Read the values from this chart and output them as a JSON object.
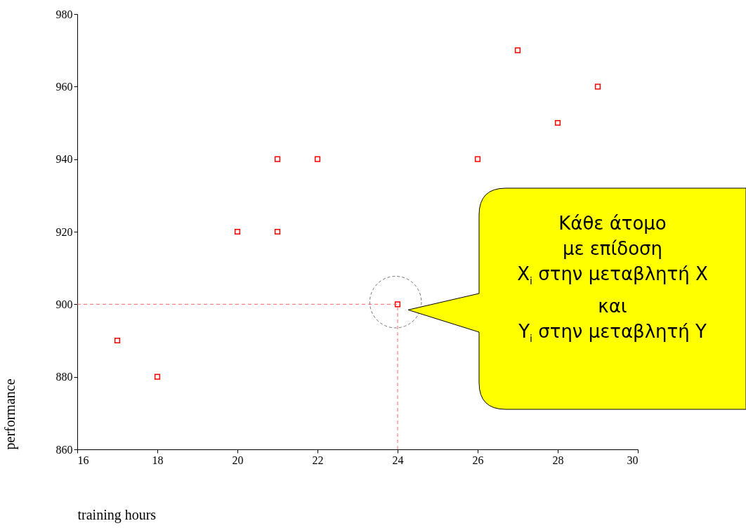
{
  "chart_data": {
    "type": "scatter",
    "xlabel": "training hours",
    "ylabel": "performance",
    "x": [
      17,
      18,
      20,
      21,
      21,
      22,
      24,
      26,
      27,
      28,
      29
    ],
    "values": [
      890,
      880,
      920,
      940,
      920,
      940,
      900,
      940,
      970,
      950,
      960
    ],
    "color": "#ff0000",
    "marker": "square",
    "grid": false,
    "xlim": [
      16,
      30
    ],
    "xticks": [
      16,
      18,
      20,
      22,
      24,
      26,
      28,
      30
    ],
    "ylim": [
      860,
      980
    ],
    "yticks": [
      860,
      880,
      900,
      920,
      940,
      960,
      980
    ],
    "ref_lines": [
      {
        "axis": "x",
        "value": 24,
        "color": "#ff6666",
        "line_style": "dashed"
      },
      {
        "axis": "y",
        "value": 900,
        "color": "#ff6666",
        "line_style": "dashed"
      }
    ],
    "annotations": [
      "Κάθε άτομο\nμε επίδοση\nX$_{i}$ στην μεταβλητή X\nκαι\nY$_{i}$ στην μεταβλητή Y"
    ]
  }
}
